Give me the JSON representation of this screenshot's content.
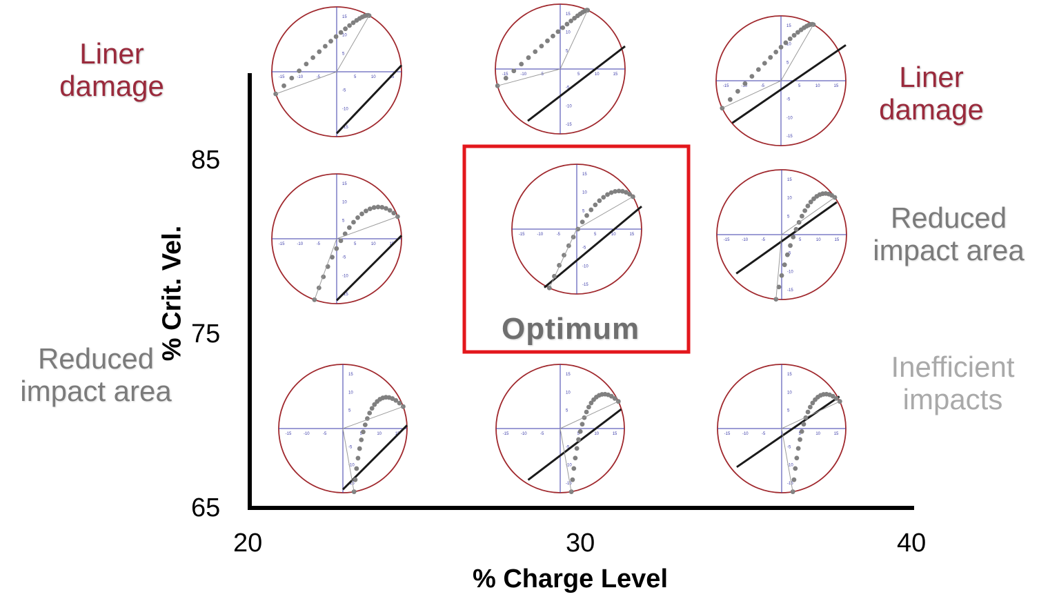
{
  "axes": {
    "x_title": "% Charge Level",
    "y_title": "% Crit. Vel.",
    "x_ticks": [
      "20",
      "30",
      "40"
    ],
    "y_ticks": [
      "85",
      "75",
      "65"
    ]
  },
  "region_labels": {
    "top_left": [
      "Liner",
      "damage"
    ],
    "top_right": [
      "Liner",
      "damage"
    ],
    "mid_right": [
      "Reduced",
      "impact area"
    ],
    "bottom_left": [
      "Reduced",
      "impact area"
    ],
    "bottom_right": [
      "Inefficient",
      "impacts"
    ]
  },
  "highlight": {
    "label": "Optimum",
    "color": "#e3171c"
  },
  "circle_axis_ticks": [
    "-15",
    "-10",
    "-5",
    "5",
    "10",
    "15"
  ],
  "colors": {
    "circle": "#a0282d",
    "circle_axis": "#3a3aa8",
    "dots": "#808080",
    "line": "#1a1a1a"
  }
}
